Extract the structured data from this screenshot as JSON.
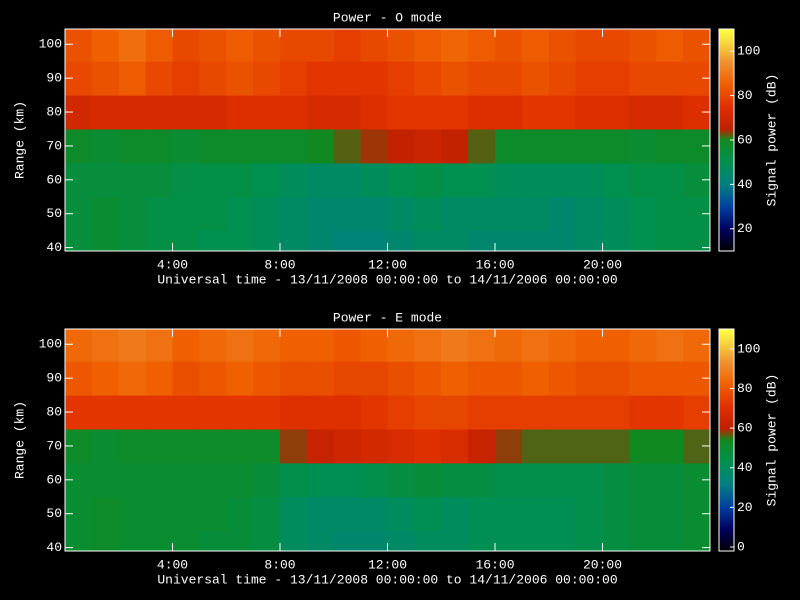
{
  "chart_data": [
    {
      "type": "heatmap",
      "title": "Power - O mode",
      "xlabel": "Universal time - 13/11/2008 00:00:00 to 14/11/2006 00:00:00",
      "ylabel": "Range (km)",
      "colorbar_label": "Signal power (dB)",
      "x": [
        0.5,
        1.5,
        2.5,
        3.5,
        4.5,
        5.5,
        6.5,
        7.5,
        8.5,
        9.5,
        10.5,
        11.5,
        12.5,
        13.5,
        14.5,
        15.5,
        16.5,
        17.5,
        18.5,
        19.5,
        20.5,
        21.5,
        22.5,
        23.5
      ],
      "y": [
        40,
        50,
        60,
        70,
        80,
        90,
        100
      ],
      "z": [
        [
          54,
          56,
          54,
          52,
          52,
          50,
          50,
          48,
          46,
          44,
          42,
          42,
          44,
          46,
          46,
          44,
          44,
          44,
          44,
          46,
          48,
          50,
          52,
          52
        ],
        [
          54,
          56,
          54,
          52,
          52,
          52,
          50,
          48,
          46,
          44,
          44,
          44,
          46,
          48,
          46,
          46,
          46,
          46,
          44,
          46,
          48,
          50,
          52,
          52
        ],
        [
          54,
          54,
          54,
          54,
          52,
          52,
          52,
          50,
          48,
          46,
          46,
          48,
          50,
          52,
          50,
          50,
          48,
          48,
          48,
          48,
          50,
          52,
          52,
          54
        ],
        [
          58,
          56,
          58,
          58,
          56,
          58,
          58,
          58,
          58,
          60,
          62,
          64,
          66,
          68,
          66,
          62,
          58,
          58,
          58,
          58,
          58,
          56,
          58,
          58
        ],
        [
          70,
          72,
          72,
          72,
          72,
          72,
          74,
          74,
          74,
          72,
          72,
          74,
          76,
          76,
          76,
          74,
          74,
          76,
          76,
          74,
          74,
          72,
          72,
          74
        ],
        [
          80,
          82,
          84,
          80,
          78,
          80,
          82,
          80,
          78,
          76,
          76,
          76,
          78,
          80,
          82,
          80,
          80,
          82,
          80,
          78,
          78,
          80,
          80,
          80
        ],
        [
          82,
          85,
          88,
          84,
          80,
          82,
          84,
          82,
          80,
          80,
          78,
          80,
          82,
          84,
          86,
          84,
          82,
          84,
          82,
          80,
          80,
          82,
          84,
          82
        ]
      ],
      "xlim": [
        0,
        24
      ],
      "xticks": [
        {
          "value": 4,
          "label": "4:00"
        },
        {
          "value": 8,
          "label": "8:00"
        },
        {
          "value": 12,
          "label": "12:00"
        },
        {
          "value": 16,
          "label": "16:00"
        },
        {
          "value": 20,
          "label": "20:00"
        }
      ],
      "ylim": [
        39,
        104.5
      ],
      "yticks": [
        40,
        50,
        60,
        70,
        80,
        90,
        100
      ],
      "clim": [
        10,
        110
      ],
      "cticks": [
        20,
        40,
        60,
        80,
        100
      ]
    },
    {
      "type": "heatmap",
      "title": "Power - E mode",
      "xlabel": "Universal time - 13/11/2008 00:00:00 to 14/11/2006 00:00:00",
      "ylabel": "Range (km)",
      "colorbar_label": "Signal power (dB)",
      "x": [
        0.5,
        1.5,
        2.5,
        3.5,
        4.5,
        5.5,
        6.5,
        7.5,
        8.5,
        9.5,
        10.5,
        11.5,
        12.5,
        13.5,
        14.5,
        15.5,
        16.5,
        17.5,
        18.5,
        19.5,
        20.5,
        21.5,
        22.5,
        23.5
      ],
      "y": [
        40,
        50,
        60,
        70,
        80,
        90,
        100
      ],
      "z": [
        [
          50,
          52,
          50,
          50,
          50,
          48,
          48,
          46,
          40,
          38,
          36,
          36,
          38,
          40,
          40,
          42,
          42,
          42,
          42,
          44,
          46,
          48,
          48,
          50
        ],
        [
          50,
          52,
          50,
          50,
          50,
          50,
          48,
          46,
          40,
          38,
          38,
          38,
          40,
          42,
          40,
          42,
          42,
          42,
          42,
          44,
          46,
          48,
          48,
          50
        ],
        [
          50,
          50,
          50,
          50,
          50,
          50,
          50,
          48,
          44,
          42,
          42,
          44,
          46,
          48,
          46,
          46,
          44,
          44,
          44,
          44,
          46,
          48,
          48,
          50
        ],
        [
          52,
          50,
          52,
          52,
          52,
          52,
          52,
          52,
          58,
          62,
          64,
          66,
          68,
          70,
          68,
          62,
          58,
          56,
          56,
          56,
          56,
          54,
          54,
          56
        ],
        [
          72,
          72,
          72,
          72,
          72,
          72,
          72,
          72,
          70,
          70,
          70,
          72,
          74,
          76,
          76,
          74,
          74,
          74,
          74,
          74,
          74,
          72,
          72,
          74
        ],
        [
          80,
          82,
          84,
          82,
          78,
          80,
          82,
          80,
          78,
          78,
          76,
          76,
          78,
          80,
          82,
          80,
          80,
          82,
          80,
          78,
          78,
          80,
          80,
          80
        ],
        [
          84,
          86,
          88,
          86,
          82,
          84,
          86,
          84,
          82,
          82,
          80,
          82,
          84,
          86,
          88,
          86,
          84,
          86,
          84,
          82,
          82,
          84,
          86,
          84
        ]
      ],
      "xlim": [
        0,
        24
      ],
      "xticks": [
        {
          "value": 4,
          "label": "4:00"
        },
        {
          "value": 8,
          "label": "8:00"
        },
        {
          "value": 12,
          "label": "12:00"
        },
        {
          "value": 16,
          "label": "16:00"
        },
        {
          "value": 20,
          "label": "20:00"
        }
      ],
      "ylim": [
        39,
        104.5
      ],
      "yticks": [
        40,
        50,
        60,
        70,
        80,
        90,
        100
      ],
      "clim": [
        -2,
        110
      ],
      "cticks": [
        0,
        20,
        40,
        60,
        80,
        100
      ]
    }
  ]
}
